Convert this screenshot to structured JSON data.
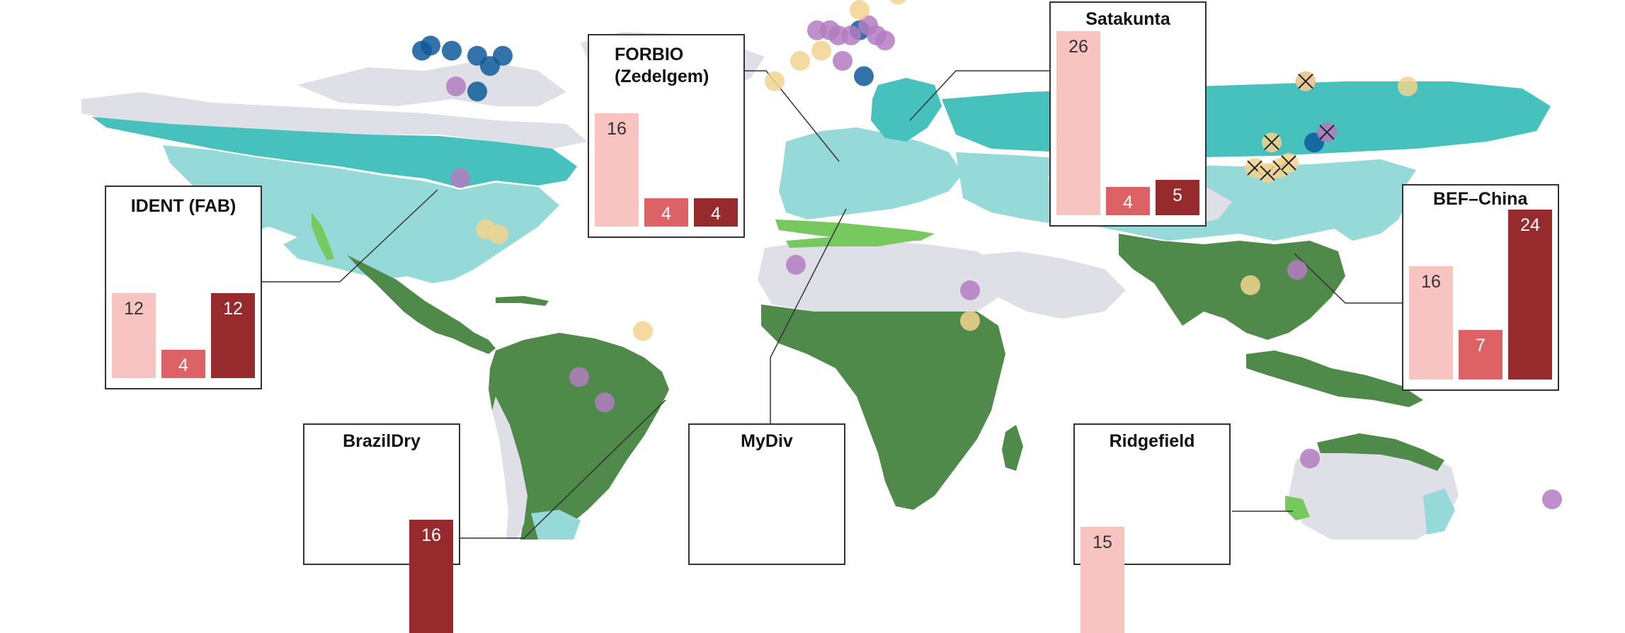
{
  "colors": {
    "bar_light": "#f7c4c2",
    "bar_mid": "#dc6265",
    "bar_dark": "#972a2d",
    "tropical_forest": "#4f8a4b",
    "mediterranean": "#77c95f",
    "temperate": "#95d9d8",
    "boreal": "#46c1bd",
    "other_land": "#dfe0e7",
    "site_blue": "#0f5b9a",
    "site_purple": "#b37bc1",
    "site_yellow": "#f2d48f"
  },
  "sites": [
    {
      "name": "IDENT (FAB)",
      "bars": [
        "12",
        "4",
        "12"
      ],
      "values": [
        12,
        4,
        12
      ]
    },
    {
      "name": "FORBIO (Zedelgem)",
      "bars": [
        "16",
        "4",
        "4"
      ],
      "values": [
        16,
        4,
        4
      ]
    },
    {
      "name": "Satakunta",
      "bars": [
        "26",
        "4",
        "5"
      ],
      "values": [
        26,
        4,
        5
      ]
    },
    {
      "name": "BEF–China",
      "bars": [
        "16",
        "7",
        "24"
      ],
      "values": [
        16,
        7,
        24
      ]
    },
    {
      "name": "BrazilDry",
      "bars": [
        "",
        "",
        "16"
      ],
      "values": [
        0,
        0,
        16
      ]
    },
    {
      "name": "MyDiv",
      "bars": [
        "",
        "",
        ""
      ],
      "values": [
        0,
        0,
        0
      ]
    },
    {
      "name": "Ridgefield",
      "bars": [
        "15",
        "",
        ""
      ],
      "values": [
        15,
        0,
        0
      ]
    }
  ],
  "markers": [
    {
      "type": "blue",
      "lon": -90,
      "lat": 48
    },
    {
      "type": "blue",
      "lon": -85,
      "lat": 47
    },
    {
      "type": "blue",
      "lon": -79,
      "lat": 46
    },
    {
      "type": "blue",
      "lon": -76,
      "lat": 44
    },
    {
      "type": "blue",
      "lon": -73,
      "lat": 46
    },
    {
      "type": "blue",
      "lon": -79,
      "lat": 39
    },
    {
      "type": "blue",
      "lon": -92,
      "lat": 47
    },
    {
      "type": "blue",
      "lon": 11,
      "lat": 51
    },
    {
      "type": "blue",
      "lon": 12,
      "lat": 42
    },
    {
      "type": "blue",
      "lon": 118,
      "lat": 29
    },
    {
      "type": "purple",
      "lon": -84,
      "lat": 40
    },
    {
      "type": "purple",
      "lon": -83,
      "lat": 22
    },
    {
      "type": "purple",
      "lon": 1,
      "lat": 51
    },
    {
      "type": "purple",
      "lon": 4,
      "lat": 51
    },
    {
      "type": "purple",
      "lon": 6,
      "lat": 50
    },
    {
      "type": "purple",
      "lon": 9,
      "lat": 50
    },
    {
      "type": "purple",
      "lon": 13,
      "lat": 52
    },
    {
      "type": "purple",
      "lon": 15,
      "lat": 50
    },
    {
      "type": "purple",
      "lon": 17,
      "lat": 49
    },
    {
      "type": "purple",
      "lon": 7,
      "lat": 45
    },
    {
      "type": "purple",
      "lon": 22,
      "lat": 61
    },
    {
      "type": "purple",
      "lon": 37,
      "lat": 0
    },
    {
      "type": "purple",
      "lon": -4,
      "lat": 5
    },
    {
      "type": "purple",
      "lon": 114,
      "lat": 4
    },
    {
      "type": "purple",
      "lon": -55,
      "lat": -17
    },
    {
      "type": "purple",
      "lon": -49,
      "lat": -22
    },
    {
      "type": "purple",
      "lon": 117,
      "lat": -33
    },
    {
      "type": "purple",
      "lon": 174,
      "lat": -41
    },
    {
      "type": "purple",
      "lon": 116,
      "lat": 41,
      "cross": true
    },
    {
      "type": "purple",
      "lon": 121,
      "lat": 31,
      "cross": true
    },
    {
      "type": "yellow",
      "lon": -77,
      "lat": 12
    },
    {
      "type": "yellow",
      "lon": -74,
      "lat": 11
    },
    {
      "type": "yellow",
      "lon": -40,
      "lat": -8
    },
    {
      "type": "yellow",
      "lon": -9,
      "lat": 41
    },
    {
      "type": "yellow",
      "lon": -3,
      "lat": 45
    },
    {
      "type": "yellow",
      "lon": 2,
      "lat": 47
    },
    {
      "type": "yellow",
      "lon": 11,
      "lat": 55
    },
    {
      "type": "yellow",
      "lon": 20,
      "lat": 58
    },
    {
      "type": "yellow",
      "lon": 37,
      "lat": -6
    },
    {
      "type": "yellow",
      "lon": 103,
      "lat": 1
    },
    {
      "type": "yellow",
      "lon": 140,
      "lat": 40
    },
    {
      "type": "yellow",
      "lon": 108,
      "lat": 29,
      "cross": true
    },
    {
      "type": "yellow",
      "lon": 104,
      "lat": 24,
      "cross": true
    },
    {
      "type": "yellow",
      "lon": 107,
      "lat": 23,
      "cross": true
    },
    {
      "type": "yellow",
      "lon": 110,
      "lat": 24,
      "cross": true
    },
    {
      "type": "yellow",
      "lon": 112,
      "lat": 25,
      "cross": true
    },
    {
      "type": "yellow",
      "lon": 116,
      "lat": 41,
      "cross": true
    }
  ]
}
